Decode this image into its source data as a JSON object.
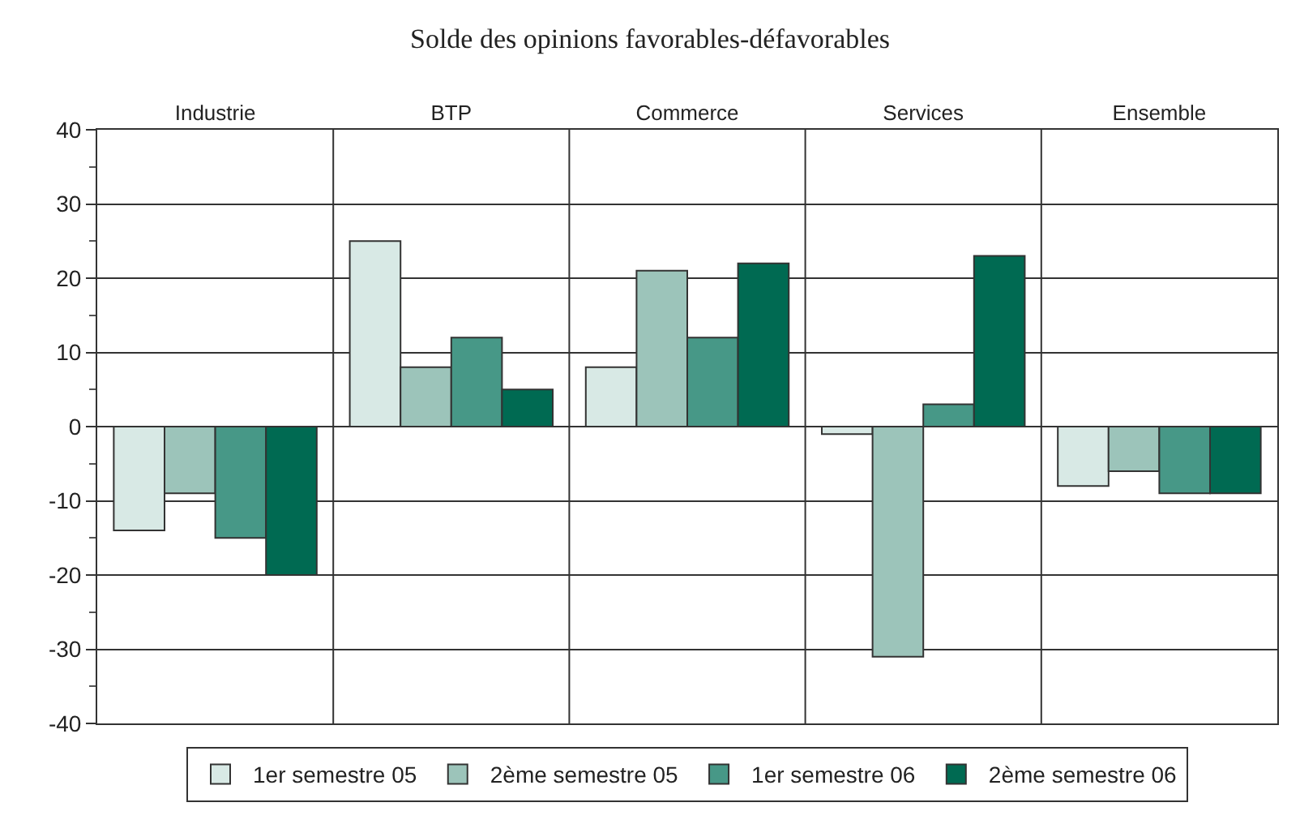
{
  "chart_data": {
    "type": "bar",
    "title": "Solde des opinions favorables-défavorables",
    "categories": [
      "Industrie",
      "BTP",
      "Commerce",
      "Services",
      "Ensemble"
    ],
    "series": [
      {
        "name": "1er semestre 05",
        "color": "#d8e9e5",
        "values": [
          -14,
          25,
          8,
          -1,
          -8
        ]
      },
      {
        "name": "2ème semestre 05",
        "color": "#9cc4ba",
        "values": [
          -9,
          8,
          21,
          -31,
          -6
        ]
      },
      {
        "name": "1er semestre 06",
        "color": "#479887",
        "values": [
          -15,
          12,
          12,
          3,
          -9
        ]
      },
      {
        "name": "2ème semestre 06",
        "color": "#006a52",
        "values": [
          -20,
          5,
          22,
          23,
          -9
        ]
      }
    ],
    "ylim": [
      -40,
      40
    ],
    "yticks": [
      -40,
      -30,
      -20,
      -10,
      0,
      10,
      20,
      30,
      40
    ],
    "grid": "y",
    "legend": "bottom"
  }
}
